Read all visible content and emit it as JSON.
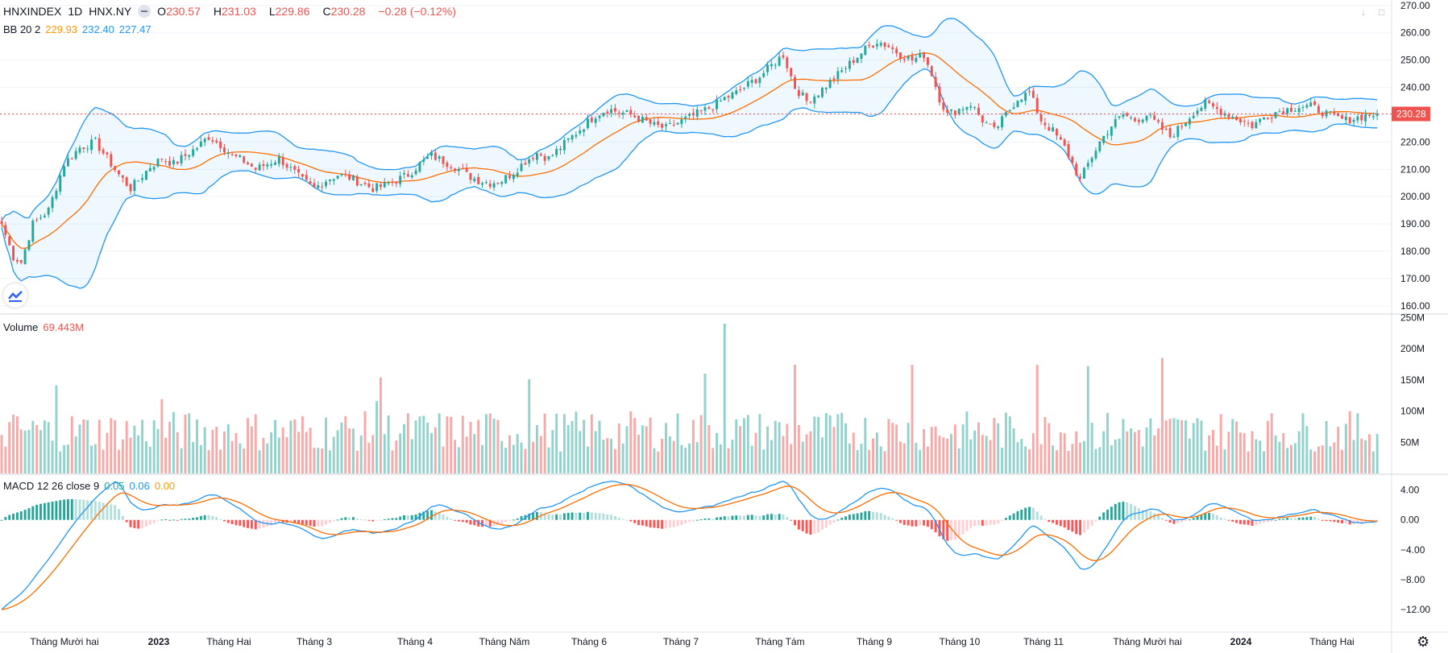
{
  "legend": {
    "symbol": "HNXINDEX",
    "interval": "1D",
    "exchange": "HNX.NY",
    "o_label": "O",
    "o_value": "230.57",
    "h_label": "H",
    "h_value": "231.03",
    "l_label": "L",
    "l_value": "229.86",
    "c_label": "C",
    "c_value": "230.28",
    "change": "−0.28 (−0.12%)",
    "bb_label": "BB 20 2",
    "bb_mid": "229.93",
    "bb_upper": "232.40",
    "bb_lower": "227.47"
  },
  "volume_legend": {
    "label": "Volume",
    "value": "69.443M"
  },
  "macd_legend": {
    "label": "MACD 12 26 close 9",
    "v1": "0.05",
    "v2": "0.06",
    "v3": "0.00"
  },
  "last_price_label": "230.28",
  "colors": {
    "up": "#26a69a",
    "down": "#ef5350",
    "bb": "#2196f3",
    "basis": "#ff6d00",
    "grid": "#f0f3fa"
  },
  "icons": [
    "minus-icon",
    "download-icon",
    "maximize-icon",
    "settings-gear-icon",
    "tradingview-logo-icon"
  ],
  "chart_data": {
    "type": "candlestick",
    "price_axis": {
      "ticks": [
        "270.00",
        "260.00",
        "250.00",
        "240.00",
        "230.00",
        "220.00",
        "210.00",
        "200.00",
        "190.00",
        "180.00",
        "170.00",
        "160.00"
      ],
      "range": [
        157,
        272
      ]
    },
    "volume_axis": {
      "ticks": [
        "250M",
        "200M",
        "150M",
        "100M",
        "50M"
      ]
    },
    "macd_axis": {
      "ticks": [
        "4.00",
        "0.00",
        "−4.00",
        "−8.00",
        "−12.00"
      ],
      "range": [
        -15,
        6
      ]
    },
    "x_labels": [
      "Tháng Mười hai",
      "2023",
      "Tháng Hai",
      "Tháng 3",
      "Tháng 4",
      "Tháng Năm",
      "Tháng 6",
      "Tháng 7",
      "Tháng Tám",
      "Tháng 9",
      "Tháng 10",
      "Tháng 11",
      "Tháng Mười hai",
      "2024",
      "Tháng Hai"
    ],
    "anchors": [
      [
        0,
        190
      ],
      [
        3,
        178
      ],
      [
        5,
        176
      ],
      [
        8,
        190
      ],
      [
        12,
        195
      ],
      [
        16,
        212
      ],
      [
        20,
        218
      ],
      [
        24,
        220
      ],
      [
        27,
        214
      ],
      [
        30,
        208
      ],
      [
        33,
        203
      ],
      [
        35,
        206
      ],
      [
        38,
        211
      ],
      [
        41,
        214
      ],
      [
        44,
        212
      ],
      [
        47,
        215
      ],
      [
        50,
        218
      ],
      [
        53,
        222
      ],
      [
        56,
        219
      ],
      [
        59,
        215
      ],
      [
        62,
        213
      ],
      [
        65,
        210
      ],
      [
        68,
        212
      ],
      [
        71,
        214
      ],
      [
        74,
        210
      ],
      [
        77,
        206
      ],
      [
        80,
        203
      ],
      [
        83,
        206
      ],
      [
        86,
        208
      ],
      [
        89,
        207
      ],
      [
        92,
        205
      ],
      [
        95,
        203
      ],
      [
        98,
        204
      ],
      [
        101,
        206
      ],
      [
        104,
        208
      ],
      [
        107,
        212
      ],
      [
        110,
        215
      ],
      [
        113,
        213
      ],
      [
        116,
        211
      ],
      [
        119,
        208
      ],
      [
        122,
        206
      ],
      [
        125,
        205
      ],
      [
        128,
        206
      ],
      [
        131,
        209
      ],
      [
        134,
        213
      ],
      [
        137,
        216
      ],
      [
        140,
        214
      ],
      [
        143,
        218
      ],
      [
        146,
        222
      ],
      [
        149,
        226
      ],
      [
        152,
        230
      ],
      [
        155,
        232
      ],
      [
        158,
        231
      ],
      [
        161,
        230
      ],
      [
        164,
        228
      ],
      [
        167,
        226
      ],
      [
        170,
        225
      ],
      [
        173,
        227
      ],
      [
        176,
        229
      ],
      [
        179,
        231
      ],
      [
        182,
        233
      ],
      [
        185,
        236
      ],
      [
        188,
        238
      ],
      [
        191,
        241
      ],
      [
        194,
        244
      ],
      [
        197,
        248
      ],
      [
        200,
        252
      ],
      [
        203,
        240
      ],
      [
        206,
        235
      ],
      [
        209,
        238
      ],
      [
        212,
        242
      ],
      [
        215,
        246
      ],
      [
        218,
        250
      ],
      [
        221,
        254
      ],
      [
        224,
        257
      ],
      [
        227,
        255
      ],
      [
        230,
        252
      ],
      [
        233,
        250
      ],
      [
        236,
        252
      ],
      [
        238,
        245
      ],
      [
        240,
        236
      ],
      [
        242,
        230
      ],
      [
        245,
        232
      ],
      [
        248,
        234
      ],
      [
        251,
        228
      ],
      [
        254,
        224
      ],
      [
        257,
        230
      ],
      [
        260,
        236
      ],
      [
        263,
        238
      ],
      [
        266,
        228
      ],
      [
        269,
        224
      ],
      [
        272,
        218
      ],
      [
        274,
        212
      ],
      [
        276,
        206
      ],
      [
        278,
        212
      ],
      [
        281,
        220
      ],
      [
        284,
        226
      ],
      [
        287,
        230
      ],
      [
        290,
        228
      ],
      [
        293,
        230
      ],
      [
        296,
        226
      ],
      [
        299,
        222
      ],
      [
        302,
        226
      ],
      [
        305,
        231
      ],
      [
        308,
        234
      ],
      [
        311,
        232
      ],
      [
        314,
        230
      ],
      [
        317,
        228
      ],
      [
        320,
        226
      ],
      [
        323,
        229
      ],
      [
        326,
        231
      ],
      [
        329,
        232
      ],
      [
        332,
        233
      ],
      [
        335,
        233
      ],
      [
        338,
        231
      ],
      [
        341,
        229
      ],
      [
        344,
        228
      ],
      [
        347,
        229
      ],
      [
        350,
        230
      ],
      [
        352,
        230.28
      ]
    ],
    "last_close": 230.28,
    "volume_max_m": 240,
    "volume_spikes": [
      [
        14,
        141
      ],
      [
        41,
        119
      ],
      [
        96,
        116
      ],
      [
        97,
        154
      ],
      [
        135,
        151
      ],
      [
        180,
        160
      ],
      [
        185,
        240
      ],
      [
        203,
        174
      ],
      [
        233,
        174
      ],
      [
        265,
        174
      ],
      [
        278,
        172
      ],
      [
        297,
        185
      ]
    ]
  }
}
